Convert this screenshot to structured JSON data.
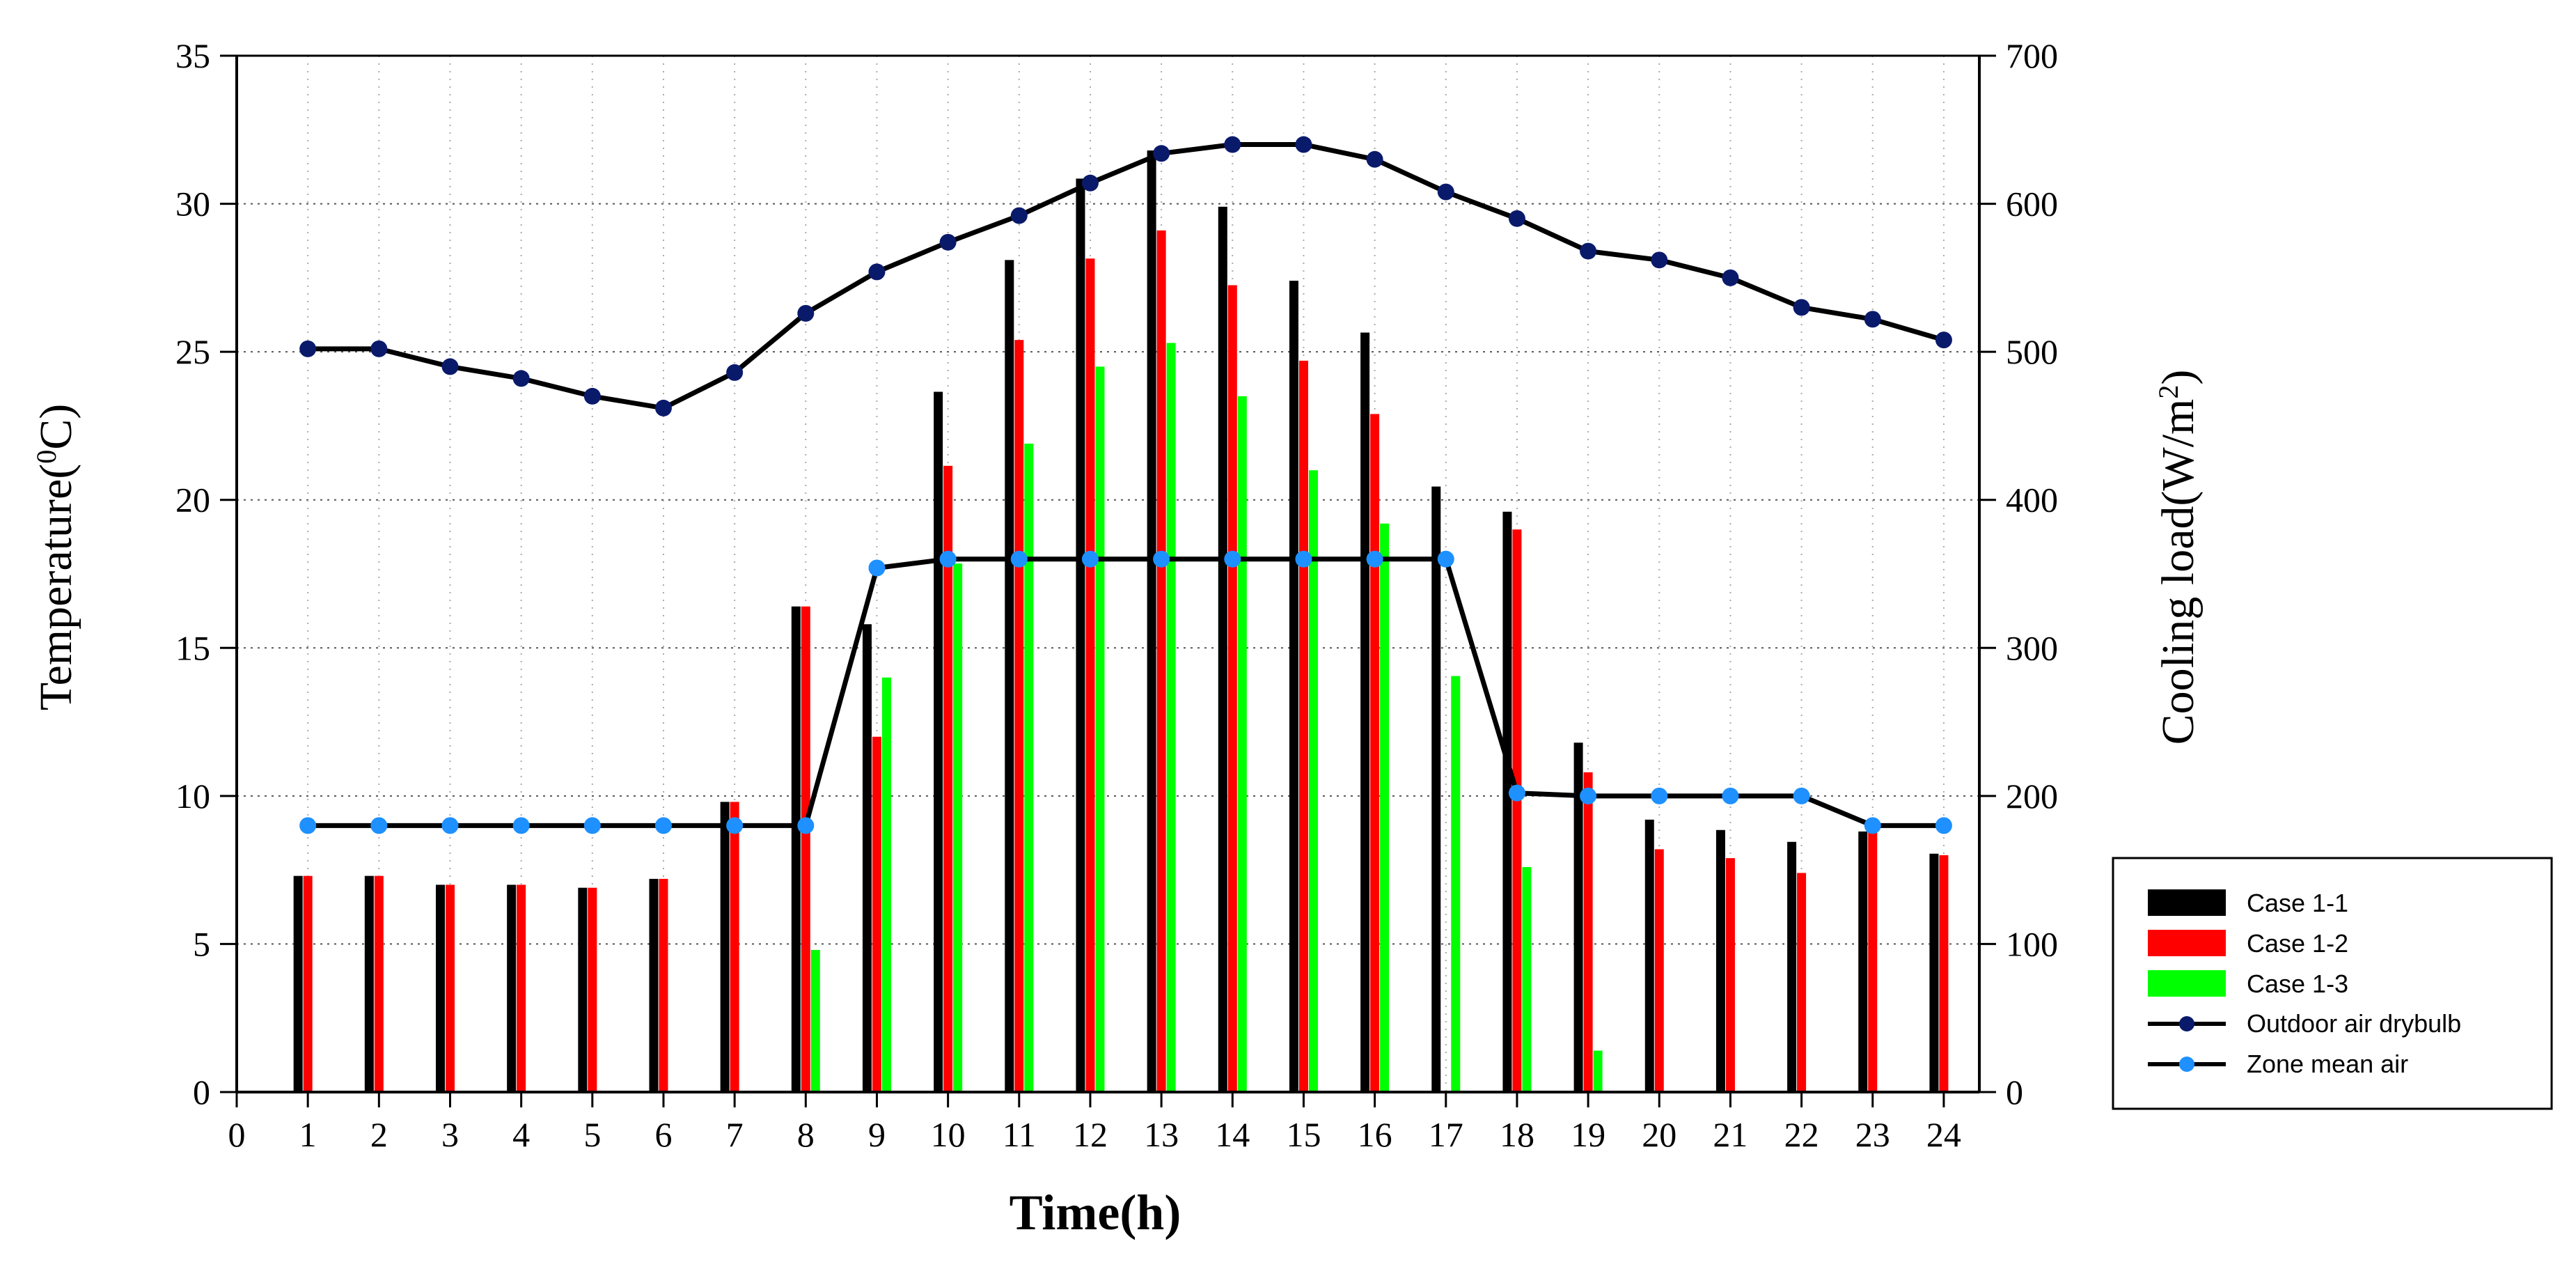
{
  "chart_data": {
    "type": "bar",
    "xlabel": "Time(h)",
    "ylabel_left_main": "Temperature(",
    "ylabel_left_sup": "0",
    "ylabel_left_end": "C)",
    "ylabel_right_main": "Cooling load(W/m",
    "ylabel_right_sup": "2",
    "ylabel_right_end": ")",
    "x_ticks": [
      "0",
      "1",
      "2",
      "3",
      "4",
      "5",
      "6",
      "7",
      "8",
      "9",
      "10",
      "11",
      "12",
      "13",
      "14",
      "15",
      "16",
      "17",
      "18",
      "19",
      "20",
      "21",
      "22",
      "23",
      "24"
    ],
    "y_left_ticks": [
      "0",
      "5",
      "10",
      "15",
      "20",
      "25",
      "30",
      "35"
    ],
    "y_right_ticks": [
      "0",
      "100",
      "200",
      "300",
      "400",
      "500",
      "600",
      "700"
    ],
    "xlim": [
      0,
      24.5
    ],
    "ylim_left": [
      0,
      35
    ],
    "ylim_right": [
      0,
      700
    ],
    "grid": true,
    "legend_position": "right",
    "hours": [
      1,
      2,
      3,
      4,
      5,
      6,
      7,
      8,
      9,
      10,
      11,
      12,
      13,
      14,
      15,
      16,
      17,
      18,
      19,
      20,
      21,
      22,
      23,
      24
    ],
    "bar_series": [
      {
        "name": "Case 1-1",
        "color": "#000000",
        "values": [
          146,
          146,
          140,
          140,
          138,
          144,
          196,
          328,
          316,
          473,
          562,
          617,
          636,
          598,
          548,
          513,
          409,
          392,
          236,
          184,
          177,
          169,
          176,
          161
        ]
      },
      {
        "name": "Case 1-2",
        "color": "#ff0000",
        "values": [
          146,
          146,
          140,
          140,
          138,
          144,
          196,
          328,
          240,
          423,
          508,
          563,
          582,
          545,
          494,
          458,
          0,
          380,
          216,
          164,
          158,
          148,
          176,
          160
        ]
      },
      {
        "name": "Case 1-3",
        "color": "#00ff00",
        "values": [
          0,
          0,
          0,
          0,
          0,
          0,
          0,
          96,
          280,
          357,
          438,
          490,
          506,
          470,
          420,
          384,
          281,
          152,
          28,
          0,
          0,
          0,
          0,
          0
        ]
      }
    ],
    "line_series": [
      {
        "name": "Outdoor air drybulb",
        "color": "#000000",
        "marker_color": "#0a1a6b",
        "values": [
          25.1,
          25.1,
          24.5,
          24.1,
          23.5,
          23.1,
          24.3,
          26.3,
          27.7,
          28.7,
          29.6,
          30.7,
          31.7,
          32.0,
          32.0,
          31.5,
          30.4,
          29.5,
          28.4,
          28.1,
          27.5,
          26.5,
          26.1,
          25.4
        ]
      },
      {
        "name": "Zone mean air",
        "color": "#000000",
        "marker_color": "#1e90ff",
        "values": [
          9.0,
          9.0,
          9.0,
          9.0,
          9.0,
          9.0,
          9.0,
          9.0,
          17.7,
          18.0,
          18.0,
          18.0,
          18.0,
          18.0,
          18.0,
          18.0,
          18.0,
          10.1,
          10.0,
          10.0,
          10.0,
          10.0,
          9.0,
          9.0
        ]
      }
    ]
  }
}
